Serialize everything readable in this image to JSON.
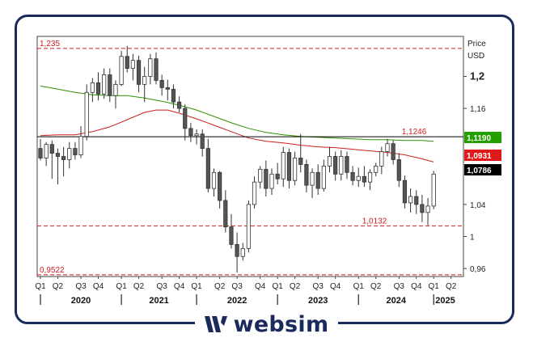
{
  "chart_data": {
    "type": "candlestick",
    "axis_title": "Price",
    "axis_unit": "USD",
    "ylim": [
      0.95,
      1.25
    ],
    "y_ticks": [
      {
        "value": 0.96,
        "label": "0,96",
        "bold": false
      },
      {
        "value": 1.0,
        "label": "1",
        "bold": false
      },
      {
        "value": 1.04,
        "label": "1,04",
        "bold": false
      },
      {
        "value": 1.16,
        "label": "1,16",
        "bold": false
      },
      {
        "value": 1.2,
        "label": "1,2",
        "bold": true
      }
    ],
    "quarter_labels": [
      {
        "label": "Q1",
        "index": 0
      },
      {
        "label": "Q2",
        "index": 3
      },
      {
        "label": "Q3",
        "index": 7
      },
      {
        "label": "Q4",
        "index": 10
      },
      {
        "label": "Q1",
        "index": 14
      },
      {
        "label": "Q2",
        "index": 17
      },
      {
        "label": "Q3",
        "index": 21
      },
      {
        "label": "Q4",
        "index": 24
      },
      {
        "label": "Q1",
        "index": 27
      },
      {
        "label": "Q2",
        "index": 31
      },
      {
        "label": "Q3",
        "index": 34
      },
      {
        "label": "Q4",
        "index": 38
      },
      {
        "label": "Q1",
        "index": 41
      },
      {
        "label": "Q2",
        "index": 44
      },
      {
        "label": "Q3",
        "index": 48
      },
      {
        "label": "Q4",
        "index": 51
      },
      {
        "label": "Q1",
        "index": 55
      },
      {
        "label": "Q2",
        "index": 58
      },
      {
        "label": "Q3",
        "index": 62
      },
      {
        "label": "Q4",
        "index": 65
      },
      {
        "label": "Q1",
        "index": 68
      },
      {
        "label": "Q2",
        "index": 71
      }
    ],
    "year_labels": [
      {
        "label": "2020",
        "start": 0,
        "end": 14
      },
      {
        "label": "2021",
        "start": 14,
        "end": 27
      },
      {
        "label": "2022",
        "start": 27,
        "end": 41
      },
      {
        "label": "2023",
        "start": 41,
        "end": 55
      },
      {
        "label": "2024",
        "start": 55,
        "end": 68
      },
      {
        "label": "2025",
        "start": 68,
        "end": 72
      }
    ],
    "candles": [
      [
        1.11,
        1.122,
        1.095,
        1.098
      ],
      [
        1.098,
        1.118,
        1.088,
        1.115
      ],
      [
        1.115,
        1.12,
        1.072,
        1.104
      ],
      [
        1.104,
        1.11,
        1.065,
        1.1
      ],
      [
        1.1,
        1.112,
        1.075,
        1.096
      ],
      [
        1.096,
        1.118,
        1.085,
        1.11
      ],
      [
        1.11,
        1.118,
        1.096,
        1.102
      ],
      [
        1.102,
        1.138,
        1.098,
        1.125
      ],
      [
        1.125,
        1.19,
        1.12,
        1.18
      ],
      [
        1.18,
        1.198,
        1.168,
        1.192
      ],
      [
        1.192,
        1.205,
        1.17,
        1.178
      ],
      [
        1.178,
        1.21,
        1.172,
        1.202
      ],
      [
        1.202,
        1.21,
        1.168,
        1.176
      ],
      [
        1.176,
        1.195,
        1.16,
        1.19
      ],
      [
        1.19,
        1.232,
        1.188,
        1.225
      ],
      [
        1.225,
        1.238,
        1.205,
        1.21
      ],
      [
        1.21,
        1.228,
        1.195,
        1.22
      ],
      [
        1.22,
        1.226,
        1.18,
        1.19
      ],
      [
        1.19,
        1.212,
        1.168,
        1.2
      ],
      [
        1.2,
        1.228,
        1.19,
        1.222
      ],
      [
        1.222,
        1.23,
        1.19,
        1.195
      ],
      [
        1.195,
        1.202,
        1.176,
        1.186
      ],
      [
        1.186,
        1.196,
        1.17,
        1.184
      ],
      [
        1.184,
        1.19,
        1.16,
        1.168
      ],
      [
        1.168,
        1.175,
        1.155,
        1.16
      ],
      [
        1.16,
        1.165,
        1.12,
        1.135
      ],
      [
        1.135,
        1.142,
        1.118,
        1.126
      ],
      [
        1.126,
        1.134,
        1.115,
        1.128
      ],
      [
        1.128,
        1.134,
        1.1,
        1.11
      ],
      [
        1.11,
        1.122,
        1.055,
        1.06
      ],
      [
        1.06,
        1.085,
        1.05,
        1.08
      ],
      [
        1.08,
        1.082,
        1.035,
        1.045
      ],
      [
        1.045,
        1.058,
        1.005,
        1.012
      ],
      [
        1.012,
        1.028,
        0.985,
        0.99
      ],
      [
        0.99,
        1.005,
        0.955,
        0.975
      ],
      [
        0.975,
        0.992,
        0.97,
        0.985
      ],
      [
        0.985,
        1.045,
        0.98,
        1.04
      ],
      [
        1.04,
        1.075,
        1.035,
        1.068
      ],
      [
        1.068,
        1.088,
        1.06,
        1.084
      ],
      [
        1.084,
        1.095,
        1.05,
        1.06
      ],
      [
        1.06,
        1.085,
        1.052,
        1.078
      ],
      [
        1.078,
        1.092,
        1.065,
        1.072
      ],
      [
        1.072,
        1.112,
        1.062,
        1.105
      ],
      [
        1.105,
        1.11,
        1.06,
        1.07
      ],
      [
        1.07,
        1.106,
        1.064,
        1.098
      ],
      [
        1.098,
        1.128,
        1.08,
        1.09
      ],
      [
        1.09,
        1.096,
        1.055,
        1.064
      ],
      [
        1.064,
        1.085,
        1.048,
        1.08
      ],
      [
        1.08,
        1.09,
        1.052,
        1.06
      ],
      [
        1.06,
        1.096,
        1.056,
        1.088
      ],
      [
        1.088,
        1.112,
        1.08,
        1.1
      ],
      [
        1.1,
        1.106,
        1.07,
        1.078
      ],
      [
        1.078,
        1.108,
        1.07,
        1.1
      ],
      [
        1.1,
        1.106,
        1.072,
        1.08
      ],
      [
        1.08,
        1.088,
        1.064,
        1.07
      ],
      [
        1.07,
        1.086,
        1.062,
        1.075
      ],
      [
        1.075,
        1.088,
        1.062,
        1.068
      ],
      [
        1.068,
        1.084,
        1.058,
        1.08
      ],
      [
        1.08,
        1.092,
        1.075,
        1.088
      ],
      [
        1.088,
        1.112,
        1.078,
        1.106
      ],
      [
        1.106,
        1.122,
        1.1,
        1.116
      ],
      [
        1.116,
        1.12,
        1.09,
        1.096
      ],
      [
        1.096,
        1.104,
        1.062,
        1.07
      ],
      [
        1.07,
        1.076,
        1.035,
        1.042
      ],
      [
        1.042,
        1.06,
        1.03,
        1.05
      ],
      [
        1.05,
        1.058,
        1.028,
        1.04
      ],
      [
        1.04,
        1.052,
        1.018,
        1.03
      ],
      [
        1.03,
        1.048,
        1.014,
        1.038
      ],
      [
        1.038,
        1.082,
        1.034,
        1.078
      ]
    ],
    "overlays": [
      {
        "name": "",
        "color": "#2f8f00",
        "points": [
          [
            0,
            1.188
          ],
          [
            3,
            1.184
          ],
          [
            6,
            1.18
          ],
          [
            9,
            1.177
          ],
          [
            12,
            1.176
          ],
          [
            15,
            1.176
          ],
          [
            18,
            1.173
          ],
          [
            21,
            1.169
          ],
          [
            24,
            1.164
          ],
          [
            27,
            1.158
          ],
          [
            30,
            1.15
          ],
          [
            33,
            1.142
          ],
          [
            36,
            1.135
          ],
          [
            39,
            1.13
          ],
          [
            42,
            1.127
          ],
          [
            45,
            1.125
          ],
          [
            48,
            1.124
          ],
          [
            51,
            1.123
          ],
          [
            54,
            1.122
          ],
          [
            57,
            1.121
          ],
          [
            60,
            1.121
          ],
          [
            63,
            1.12
          ],
          [
            66,
            1.12
          ],
          [
            68,
            1.119
          ]
        ]
      },
      {
        "name": "",
        "color": "#cc1f1f",
        "points": [
          [
            0,
            1.126
          ],
          [
            3,
            1.127
          ],
          [
            6,
            1.127
          ],
          [
            9,
            1.131
          ],
          [
            12,
            1.137
          ],
          [
            15,
            1.146
          ],
          [
            18,
            1.155
          ],
          [
            20,
            1.158
          ],
          [
            22,
            1.158
          ],
          [
            24,
            1.154
          ],
          [
            27,
            1.147
          ],
          [
            30,
            1.139
          ],
          [
            33,
            1.131
          ],
          [
            36,
            1.123
          ],
          [
            39,
            1.119
          ],
          [
            42,
            1.117
          ],
          [
            45,
            1.114
          ],
          [
            48,
            1.112
          ],
          [
            51,
            1.111
          ],
          [
            54,
            1.109
          ],
          [
            57,
            1.107
          ],
          [
            60,
            1.105
          ],
          [
            63,
            1.102
          ],
          [
            66,
            1.097
          ],
          [
            68,
            1.093
          ]
        ]
      }
    ],
    "horizontal_lines": [
      {
        "value": 1.235,
        "label": "1,235",
        "color": "#cc1f1f",
        "dash": true,
        "label_position": "left"
      },
      {
        "value": 1.1246,
        "label": "1,1246",
        "color": "#000000",
        "dash": false,
        "label_position": "right-inline"
      },
      {
        "value": 1.0132,
        "label": "1,0132",
        "color": "#cc1f1f",
        "dash": true,
        "label_position": "center"
      },
      {
        "value": 0.9522,
        "label": "0,9522",
        "color": "#cc1f1f",
        "dash": true,
        "label_position": "left"
      }
    ],
    "price_tags": [
      {
        "value": 1.119,
        "label": "1,1190",
        "bg": "#22a000",
        "fg": "#ffffff"
      },
      {
        "value": 1.0931,
        "label": "1,0931",
        "bg": "#e01a1a",
        "fg": "#ffffff"
      },
      {
        "value": 1.0786,
        "label": "1,0786",
        "bg": "#000000",
        "fg": "#ffffff"
      }
    ],
    "colors": {
      "bull": "#ffffff",
      "bear": "#555555",
      "frame": "#1a2a5c",
      "grid": "#e8e8e8"
    }
  },
  "brand": {
    "name": "websim"
  }
}
